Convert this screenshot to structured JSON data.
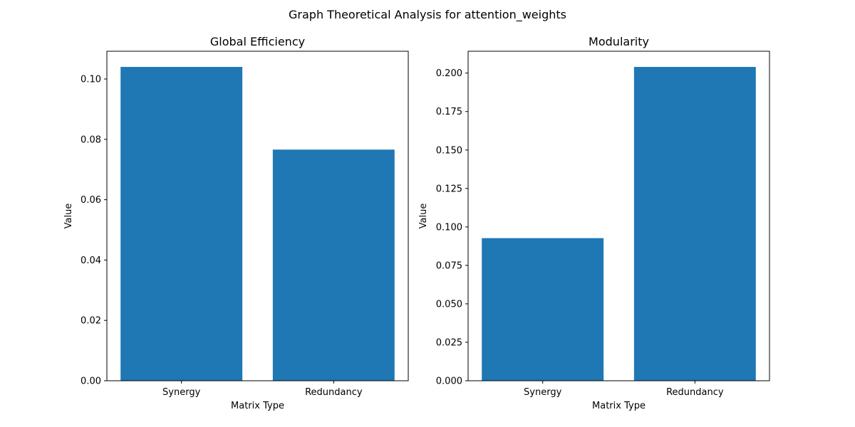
{
  "figure": {
    "title": "Graph Theoretical Analysis for attention_weights"
  },
  "colors": {
    "bar": "#1f77b4",
    "axis": "#000000",
    "background": "#ffffff"
  },
  "chart_data": [
    {
      "type": "bar",
      "title": "Global Efficiency",
      "xlabel": "Matrix Type",
      "ylabel": "Value",
      "categories": [
        "Synergy",
        "Redundancy"
      ],
      "values": [
        0.104,
        0.0766
      ],
      "ylim": [
        0,
        0.1092
      ],
      "yticks": [
        0.0,
        0.02,
        0.04,
        0.06,
        0.08,
        0.1
      ],
      "ytick_labels": [
        "0.00",
        "0.02",
        "0.04",
        "0.06",
        "0.08",
        "0.10"
      ],
      "grid": false,
      "legend": "none"
    },
    {
      "type": "bar",
      "title": "Modularity",
      "xlabel": "Matrix Type",
      "ylabel": "Value",
      "categories": [
        "Synergy",
        "Redundancy"
      ],
      "values": [
        0.0927,
        0.204
      ],
      "ylim": [
        0,
        0.2142
      ],
      "yticks": [
        0.0,
        0.025,
        0.05,
        0.075,
        0.1,
        0.125,
        0.15,
        0.175,
        0.2
      ],
      "ytick_labels": [
        "0.000",
        "0.025",
        "0.050",
        "0.075",
        "0.100",
        "0.125",
        "0.150",
        "0.175",
        "0.200"
      ],
      "grid": false,
      "legend": "none"
    }
  ]
}
